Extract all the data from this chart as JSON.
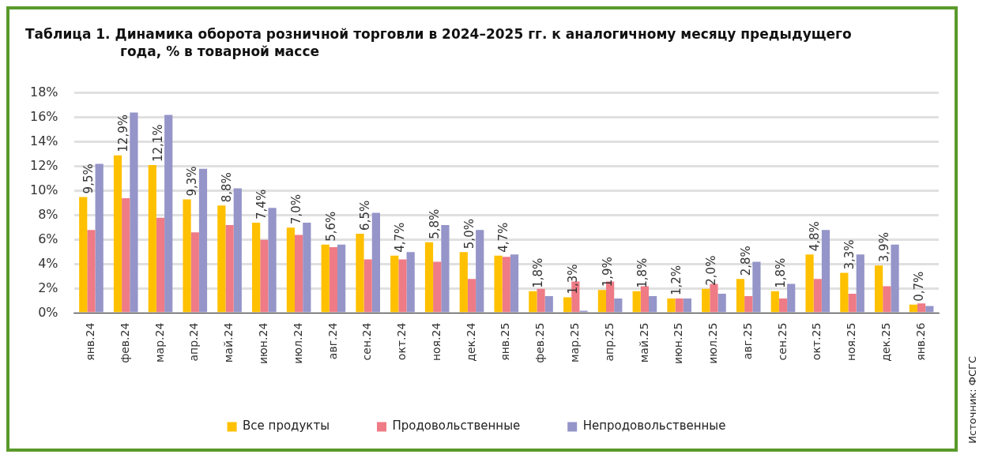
{
  "chart_data": {
    "type": "bar",
    "title": "Таблица 1.  Динамика оборота розничной торговли в 2024–2025 гг. к аналогичному месяцу предыдущего года, % в товарной массе",
    "categories": [
      "янв.24",
      "фев.24",
      "мар.24",
      "апр.24",
      "май.24",
      "июн.24",
      "июл.24",
      "авг.24",
      "сен.24",
      "окт.24",
      "ноя.24",
      "дек.24",
      "янв.25",
      "фев.25",
      "мар.25",
      "апр.25",
      "май.25",
      "июн.25",
      "июл.25",
      "авг.25",
      "сен.25",
      "окт.25",
      "ноя.25",
      "дек.25",
      "янв.26"
    ],
    "series": [
      {
        "name": "Все продукты",
        "color": "#ffc000",
        "values": [
          9.5,
          12.9,
          12.1,
          9.3,
          8.8,
          7.4,
          7.0,
          5.6,
          6.5,
          4.7,
          5.8,
          5.0,
          4.7,
          1.8,
          1.3,
          1.9,
          1.8,
          1.2,
          2.0,
          2.8,
          1.8,
          4.8,
          3.3,
          3.9,
          0.7
        ],
        "value_labels": [
          "9,5%",
          "12,9%",
          "12,1%",
          "9,3%",
          "8,8%",
          "7,4%",
          "7,0%",
          "5,6%",
          "6,5%",
          "4,7%",
          "5,8%",
          "5,0%",
          "4,7%",
          "1,8%",
          "1,3%",
          "1,9%",
          "1,8%",
          "1,2%",
          "2,0%",
          "2,8%",
          "1,8%",
          "4,8%",
          "3,3%",
          "3,9%",
          "0,7%"
        ]
      },
      {
        "name": "Продовольственные",
        "color": "#ee7b86",
        "values": [
          6.8,
          9.4,
          7.8,
          6.6,
          7.2,
          6.0,
          6.4,
          5.4,
          4.4,
          4.4,
          4.2,
          2.8,
          4.6,
          2.0,
          2.6,
          2.6,
          2.2,
          1.2,
          2.4,
          1.4,
          1.2,
          2.8,
          1.6,
          2.2,
          0.8
        ]
      },
      {
        "name": "Непродовольственные",
        "color": "#9595c9",
        "values": [
          12.2,
          16.4,
          16.2,
          11.8,
          10.2,
          8.6,
          7.4,
          5.6,
          8.2,
          5.0,
          7.2,
          6.8,
          4.8,
          1.4,
          0.2,
          1.2,
          1.4,
          1.2,
          1.6,
          4.2,
          2.4,
          6.8,
          4.8,
          5.6,
          0.6
        ]
      }
    ],
    "ylim": [
      0,
      18
    ],
    "yticks": [
      {
        "value": 0,
        "label": "0%"
      },
      {
        "value": 2,
        "label": "2%"
      },
      {
        "value": 4,
        "label": "4%"
      },
      {
        "value": 6,
        "label": "6%"
      },
      {
        "value": 8,
        "label": "8%"
      },
      {
        "value": 10,
        "label": "10%"
      },
      {
        "value": 12,
        "label": "12%"
      },
      {
        "value": 14,
        "label": "14%"
      },
      {
        "value": 16,
        "label": "16%"
      },
      {
        "value": 18,
        "label": "18%"
      }
    ],
    "grid": "y",
    "legend": "bottom",
    "annotations": [
      "Источник: ФСГС"
    ]
  }
}
